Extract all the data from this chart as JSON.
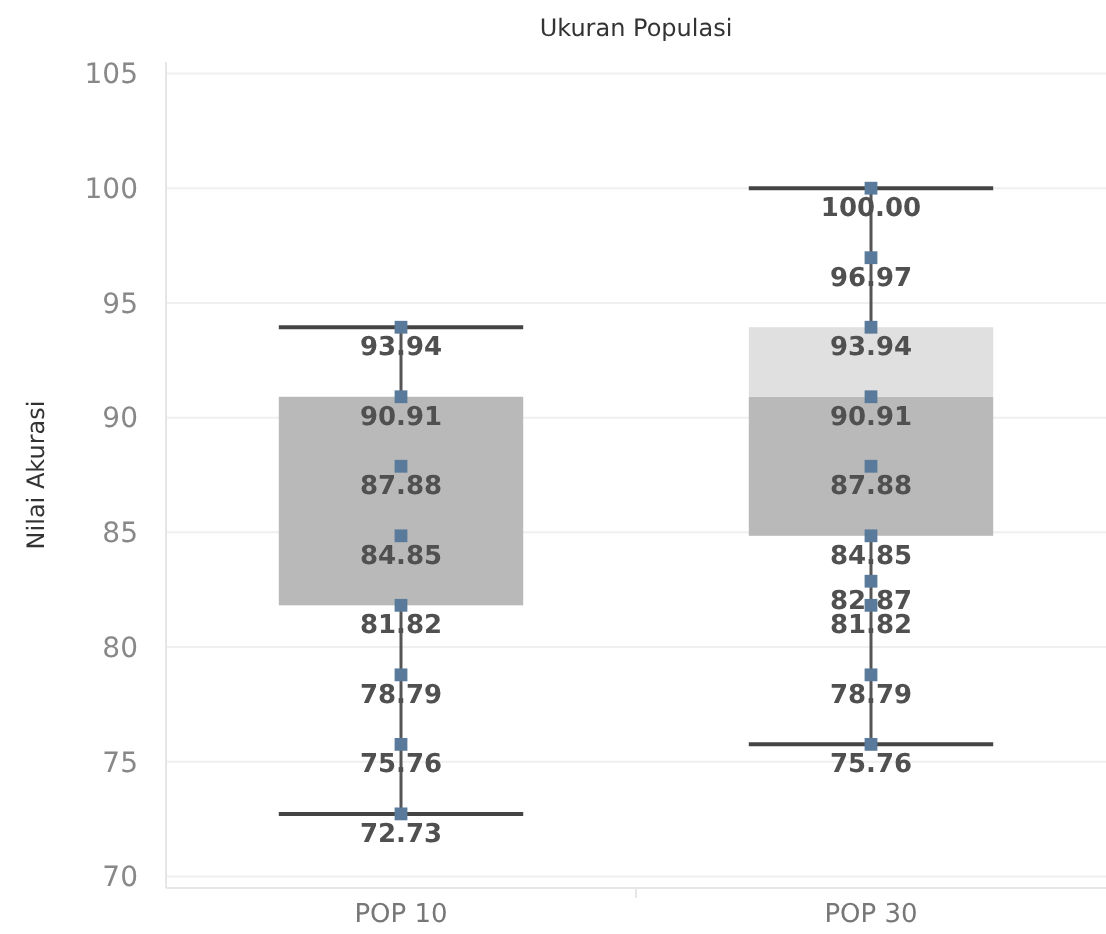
{
  "chart_data": {
    "type": "box",
    "title": "Ukuran Populasi",
    "ylabel": "Nilai Akurasi",
    "categories": [
      "POP 10",
      "POP 30"
    ],
    "ylim": [
      69.5,
      105.5
    ],
    "yticks": [
      70,
      75,
      80,
      85,
      90,
      95,
      100,
      105
    ],
    "grid": "y",
    "marker": "square",
    "series": [
      {
        "type": "box",
        "color": "#b9b9b9",
        "boxes": [
          {
            "low": 72.73,
            "q1": 81.82,
            "median": 90.91,
            "q3": 90.91,
            "high": 93.94
          },
          {
            "low": 75.76,
            "q1": 84.85,
            "median": 90.91,
            "q3": 93.94,
            "high": 100
          }
        ]
      },
      {
        "type": "scatter",
        "color": "#5a7a9c",
        "x": [
          "POP 10",
          "POP 10",
          "POP 10",
          "POP 10",
          "POP 10",
          "POP 10",
          "POP 10",
          "POP 10",
          "POP 30",
          "POP 30",
          "POP 30",
          "POP 30",
          "POP 30",
          "POP 30",
          "POP 30",
          "POP 30",
          "POP 30",
          "POP 30"
        ],
        "values": [
          93.94,
          90.91,
          87.88,
          84.85,
          81.82,
          78.79,
          75.76,
          72.73,
          100,
          96.97,
          93.94,
          90.91,
          87.88,
          84.85,
          82.87,
          81.82,
          78.79,
          75.76
        ],
        "value_labels": [
          "93.94",
          "90.91",
          "87.88",
          "84.85",
          "81.82",
          "78.79",
          "75.76",
          "72.73",
          "100.00",
          "96.97",
          "93.94",
          "90.91",
          "87.88",
          "84.85",
          "82.87",
          "81.82",
          "78.79",
          "75.76"
        ]
      }
    ]
  }
}
